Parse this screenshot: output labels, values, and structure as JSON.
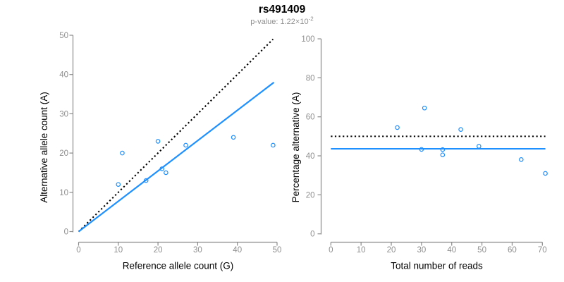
{
  "figure": {
    "title": "rs491409",
    "subtitle_prefix": "p-value: ",
    "subtitle_mantissa": "1.22×10",
    "subtitle_exponent": "-2"
  },
  "colors": {
    "accent": "#1E90FF",
    "axis": "#8a8a8a",
    "tick_label": "#8e8e8e",
    "subtitle": "#909090",
    "axis_title": "#000000",
    "dotted_line": "#000000"
  },
  "chart_data": [
    {
      "id": "allele-count-scatter",
      "type": "scatter",
      "xlabel": "Reference allele count (G)",
      "ylabel": "Alternative allele count (A)",
      "xlim": [
        0,
        50
      ],
      "ylim": [
        0,
        50
      ],
      "xticks": [
        0,
        10,
        20,
        30,
        40,
        50
      ],
      "yticks": [
        0,
        10,
        20,
        30,
        40,
        50
      ],
      "grid": false,
      "legend": null,
      "marker": "open-circle",
      "points": [
        [
          10,
          12
        ],
        [
          11,
          20
        ],
        [
          17,
          13
        ],
        [
          20,
          23
        ],
        [
          21,
          16
        ],
        [
          22,
          15
        ],
        [
          27,
          22
        ],
        [
          39,
          24
        ],
        [
          49,
          22
        ]
      ],
      "lines": [
        {
          "name": "identity-line",
          "dash": "dotted",
          "color": "#000000",
          "x1": 0,
          "y1": 0,
          "x2": 49,
          "y2": 49
        },
        {
          "name": "fit-line",
          "dash": "solid",
          "color": "#1E90FF",
          "x1": 0,
          "y1": 0,
          "x2": 49.2,
          "y2": 38
        }
      ]
    },
    {
      "id": "percentage-scatter",
      "type": "scatter",
      "xlabel": "Total number of reads",
      "ylabel": "Percentage alternative (A)",
      "xlim": [
        0,
        71
      ],
      "ylim": [
        0,
        100
      ],
      "xticks": [
        0,
        10,
        20,
        30,
        40,
        50,
        60,
        70
      ],
      "yticks": [
        0,
        20,
        40,
        60,
        80,
        100
      ],
      "grid": false,
      "legend": null,
      "marker": "open-circle",
      "points": [
        [
          22,
          54.5
        ],
        [
          30,
          43.3
        ],
        [
          31,
          64.5
        ],
        [
          37,
          43.2
        ],
        [
          37,
          40.5
        ],
        [
          43,
          53.5
        ],
        [
          49,
          44.9
        ],
        [
          63,
          38.1
        ],
        [
          71,
          31
        ]
      ],
      "lines": [
        {
          "name": "null-line",
          "dash": "dotted",
          "color": "#000000",
          "x1": 0,
          "y1": 50,
          "x2": 71,
          "y2": 50
        },
        {
          "name": "mean-line",
          "dash": "solid",
          "color": "#1E90FF",
          "x1": 0,
          "y1": 43.6,
          "x2": 71,
          "y2": 43.6
        }
      ]
    }
  ]
}
